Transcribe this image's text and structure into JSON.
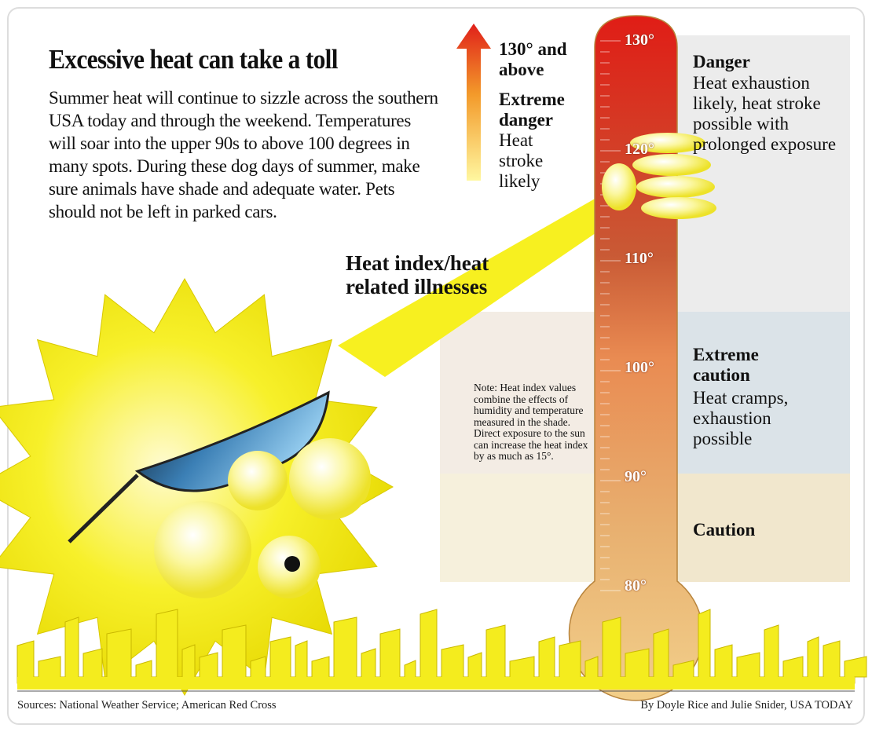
{
  "header": {
    "title": "Excessive heat can take a toll",
    "intro": "Summer heat will continue to sizzle across the southern USA today and through the weekend. Temperatures will soar into the upper 90s to above 100 degrees in many spots. During these dog days of summer, make sure animals have shade and adequate water. Pets should not be left in parked cars."
  },
  "arrow_label": {
    "range": "130° and above",
    "level": "Extreme danger",
    "effect": "Heat stroke likely"
  },
  "thermometer": {
    "label": "Heat index/heat related illnesses",
    "ticks": [
      "130°",
      "120°",
      "110°",
      "100°",
      "90°",
      "80°"
    ]
  },
  "zones": [
    {
      "level": "Danger",
      "effect": "Heat exhaustion likely, heat stroke possible with prolonged exposure"
    },
    {
      "level": "Extreme caution",
      "effect": "Heat cramps, exhaustion possible"
    },
    {
      "level": "Caution"
    }
  ],
  "note": "Note: Heat index values combine the effects of humidity and temperature measured in the shade. Direct exposure to the sun can increase the heat index by as much as 15°.",
  "footer": {
    "sources": "Sources: National Weather Service; American Red Cross",
    "credit": "By Doyle Rice and Julie Snider, USA TODAY"
  }
}
